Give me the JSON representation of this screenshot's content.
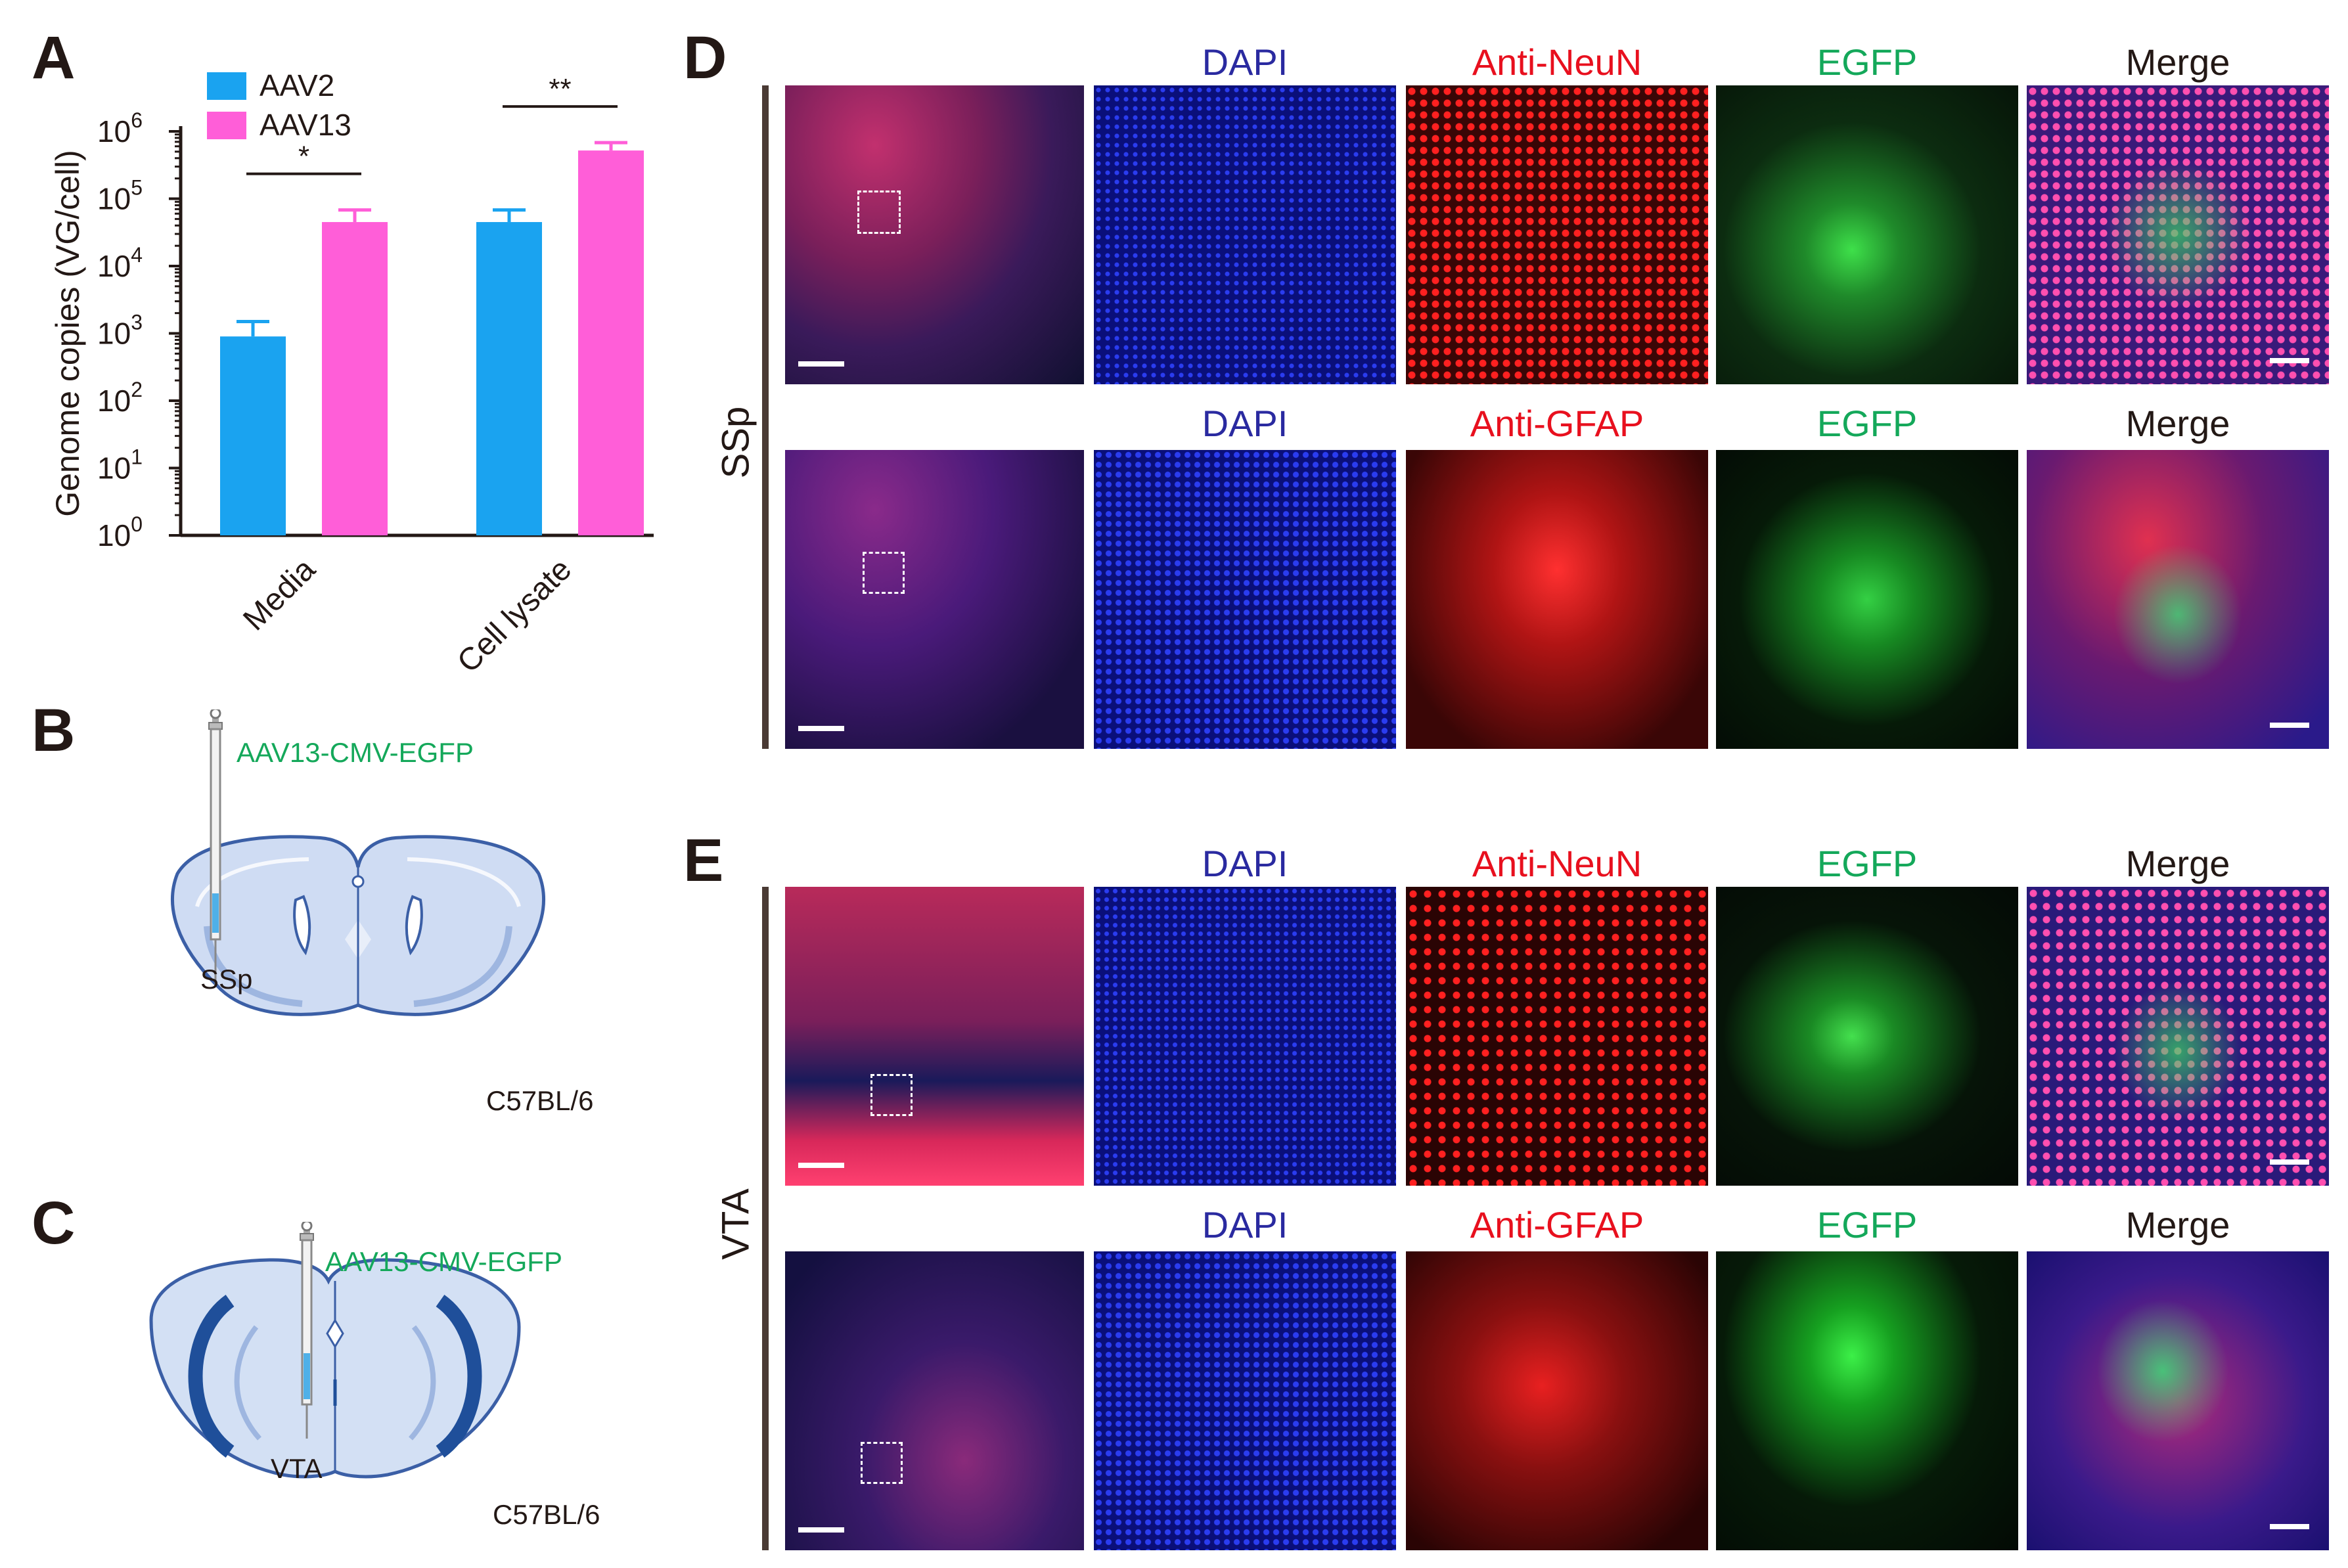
{
  "panels": {
    "A": "A",
    "B": "B",
    "C": "C",
    "D": "D",
    "E": "E"
  },
  "colors": {
    "aav2": "#1aa3f0",
    "aav13": "#ff5ed8",
    "dapi_label": "#2a2aa0",
    "red_label": "#e8101e",
    "egfp_label": "#14a85a",
    "merge_label": "#231815",
    "inject_label": "#14a85a"
  },
  "chart_data": {
    "type": "bar",
    "ylabel": "Genome copies (VG/cell)",
    "yscale": "log",
    "ylim": [
      1,
      1000000
    ],
    "yticks": [
      {
        "base": "10",
        "exp": "0",
        "value": 1
      },
      {
        "base": "10",
        "exp": "1",
        "value": 10
      },
      {
        "base": "10",
        "exp": "2",
        "value": 100
      },
      {
        "base": "10",
        "exp": "3",
        "value": 1000
      },
      {
        "base": "10",
        "exp": "4",
        "value": 10000
      },
      {
        "base": "10",
        "exp": "5",
        "value": 100000
      },
      {
        "base": "10",
        "exp": "6",
        "value": 1000000
      }
    ],
    "categories": [
      "Media",
      "Cell lysate"
    ],
    "series": [
      {
        "name": "AAV2",
        "values": [
          900,
          45000
        ],
        "errors": [
          1500,
          68000
        ]
      },
      {
        "name": "AAV13",
        "values": [
          45000,
          520000
        ],
        "errors": [
          68000,
          680000
        ]
      }
    ],
    "significance": [
      "*",
      "**"
    ],
    "legend": "top-left"
  },
  "diagram_b": {
    "injection": "AAV13-CMV-EGFP",
    "region": "SSp",
    "strain": "C57BL/6"
  },
  "diagram_c": {
    "injection": "AAV13-CMV-EGFP",
    "region": "VTA",
    "strain": "C57BL/6"
  },
  "panel_d": {
    "region_label": "SSp",
    "row1": {
      "dapi": "DAPI",
      "marker": "Anti-NeuN",
      "egfp": "EGFP",
      "merge": "Merge"
    },
    "row2": {
      "dapi": "DAPI",
      "marker": "Anti-GFAP",
      "egfp": "EGFP",
      "merge": "Merge"
    }
  },
  "panel_e": {
    "region_label": "VTA",
    "row1": {
      "dapi": "DAPI",
      "marker": "Anti-NeuN",
      "egfp": "EGFP",
      "merge": "Merge"
    },
    "row2": {
      "dapi": "DAPI",
      "marker": "Anti-GFAP",
      "egfp": "EGFP",
      "merge": "Merge"
    }
  }
}
